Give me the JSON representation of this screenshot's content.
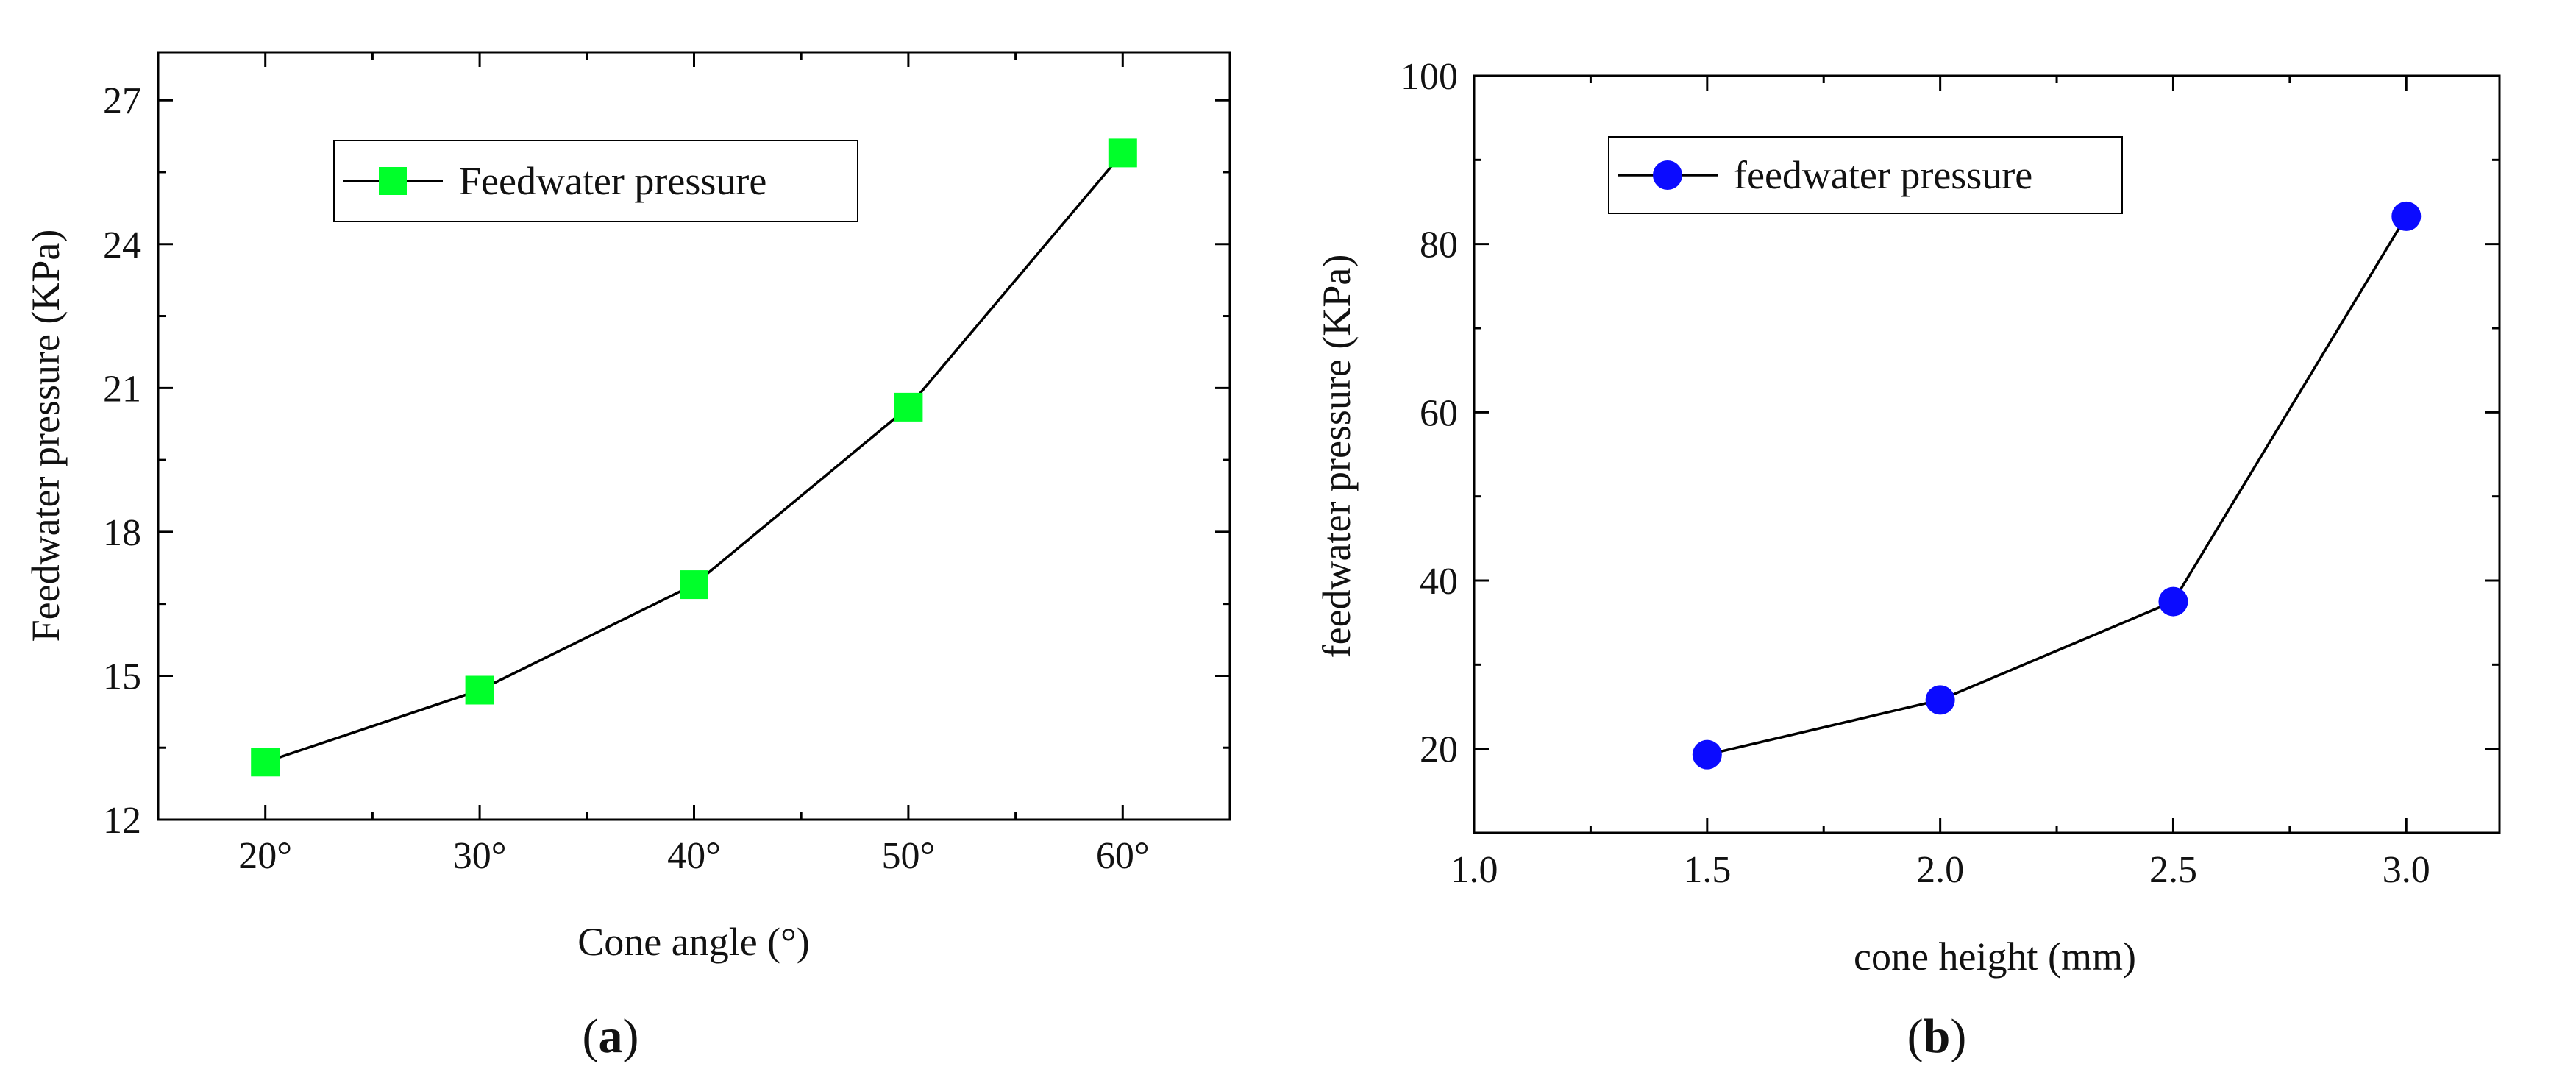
{
  "chart_data": [
    {
      "id": "a",
      "type": "line",
      "caption": {
        "open": "(",
        "letter": "a",
        "close": ")"
      },
      "xlabel": "Cone angle (°)",
      "ylabel": "Feedwater pressure (KPa)",
      "x": [
        20,
        30,
        40,
        50,
        60
      ],
      "xlim": [
        15,
        65
      ],
      "ylim": [
        12,
        28
      ],
      "xticks": [
        {
          "value": 20,
          "label": "20°"
        },
        {
          "value": 30,
          "label": "30°"
        },
        {
          "value": 40,
          "label": "40°"
        },
        {
          "value": 50,
          "label": "50°"
        },
        {
          "value": 60,
          "label": "60°"
        }
      ],
      "yticks": [
        {
          "value": 12,
          "label": "12"
        },
        {
          "value": 15,
          "label": "15"
        },
        {
          "value": 18,
          "label": "18"
        },
        {
          "value": 21,
          "label": "21"
        },
        {
          "value": 24,
          "label": "24"
        },
        {
          "value": 27,
          "label": "27"
        }
      ],
      "series": [
        {
          "name": "Feedwater pressure",
          "marker": "square",
          "color": "#00ff2a",
          "line_color": "#000000",
          "values": [
            13.2,
            14.7,
            16.9,
            20.6,
            25.9
          ]
        }
      ],
      "legend": {
        "position": "top-left"
      },
      "grid": false
    },
    {
      "id": "b",
      "type": "line",
      "caption": {
        "open": "(",
        "letter": "b",
        "close": ")"
      },
      "xlabel": "cone height (mm)",
      "ylabel": "feedwater pressure (KPa)",
      "x": [
        1.5,
        2.0,
        2.5,
        3.0
      ],
      "xlim": [
        1.0,
        3.2
      ],
      "ylim": [
        10,
        100
      ],
      "xticks": [
        {
          "value": 1.0,
          "label": "1.0"
        },
        {
          "value": 1.5,
          "label": "1.5"
        },
        {
          "value": 2.0,
          "label": "2.0"
        },
        {
          "value": 2.5,
          "label": "2.5"
        },
        {
          "value": 3.0,
          "label": "3.0"
        }
      ],
      "yticks": [
        {
          "value": 20,
          "label": "20"
        },
        {
          "value": 40,
          "label": "40"
        },
        {
          "value": 60,
          "label": "60"
        },
        {
          "value": 80,
          "label": "80"
        },
        {
          "value": 100,
          "label": "100"
        }
      ],
      "series": [
        {
          "name": "feedwater pressure",
          "marker": "circle",
          "color": "#0b0bff",
          "line_color": "#000000",
          "values": [
            19.3,
            25.8,
            37.5,
            83.3
          ]
        }
      ],
      "legend": {
        "position": "top-left"
      },
      "grid": false
    }
  ]
}
